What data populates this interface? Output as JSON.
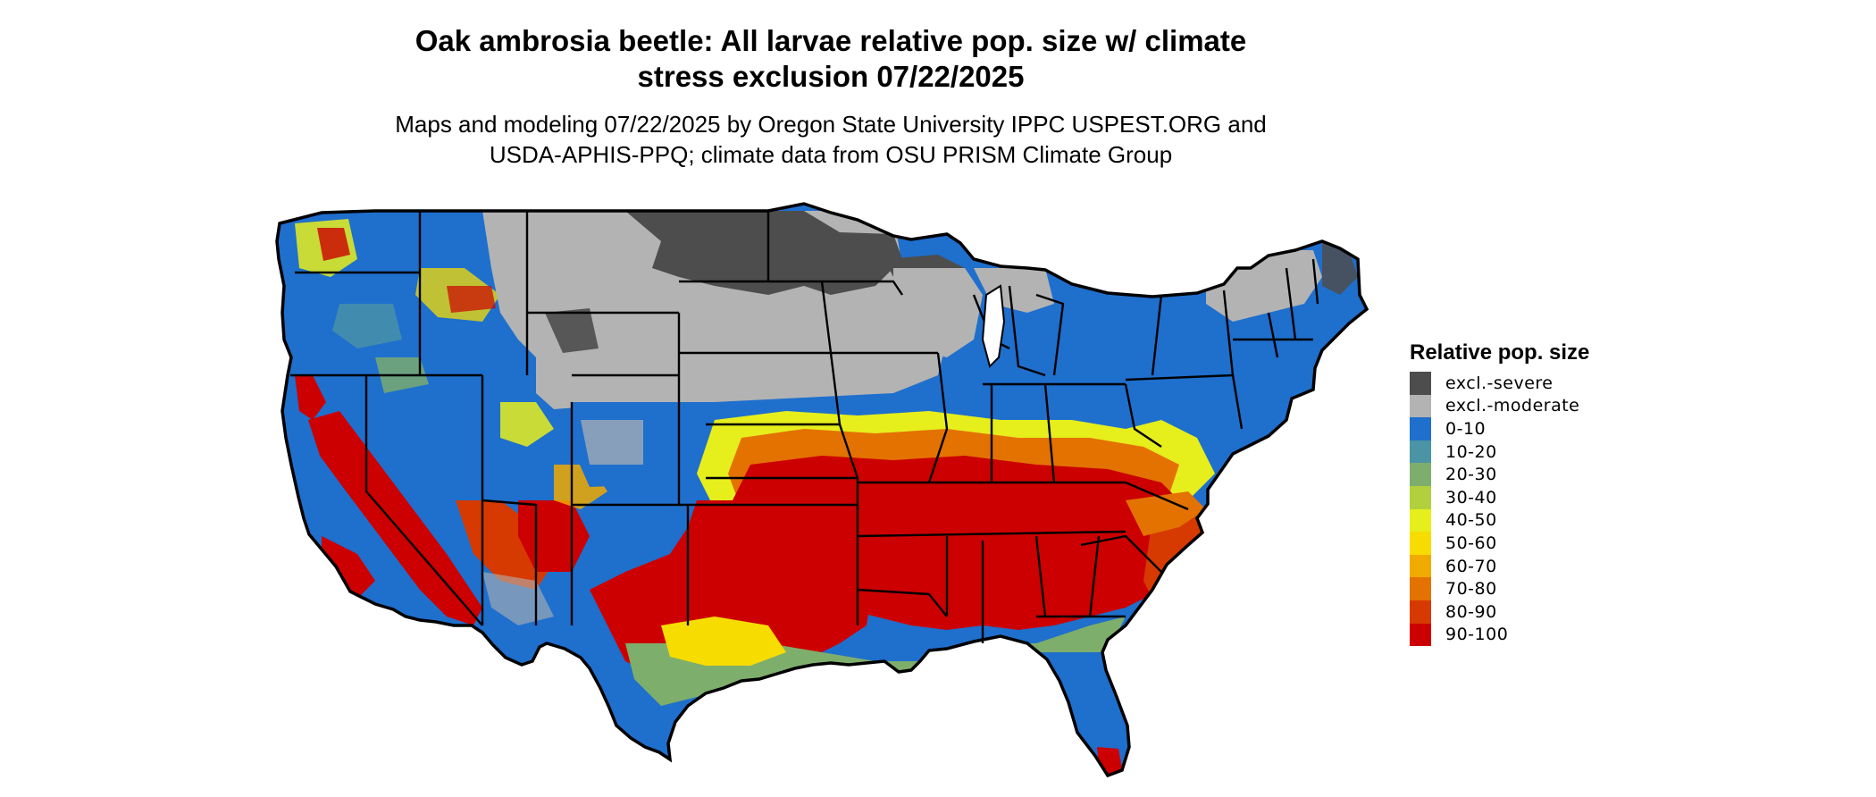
{
  "title_line1": "Oak ambrosia beetle: All larvae relative pop. size w/ climate",
  "title_line2": "stress exclusion 07/22/2025",
  "subtitle_line1": "Maps and modeling 07/22/2025 by Oregon State University IPPC USPEST.ORG and",
  "subtitle_line2": "USDA-APHIS-PPQ; climate data from OSU PRISM Climate Group",
  "legend": {
    "title": "Relative pop. size",
    "items": [
      {
        "label": "excl.-severe",
        "color": "#4d4d4d"
      },
      {
        "label": "excl.-moderate",
        "color": "#b3b3b3"
      },
      {
        "label": "0-10",
        "color": "#1f6fcd"
      },
      {
        "label": "10-20",
        "color": "#4a94a6"
      },
      {
        "label": "20-30",
        "color": "#7eae6c"
      },
      {
        "label": "30-40",
        "color": "#b2cf3e"
      },
      {
        "label": "40-50",
        "color": "#e6ee1c"
      },
      {
        "label": "50-60",
        "color": "#f7dc00"
      },
      {
        "label": "60-70",
        "color": "#f0aa00"
      },
      {
        "label": "70-80",
        "color": "#e37200"
      },
      {
        "label": "80-90",
        "color": "#d63a00"
      },
      {
        "label": "90-100",
        "color": "#cc0000"
      }
    ]
  }
}
